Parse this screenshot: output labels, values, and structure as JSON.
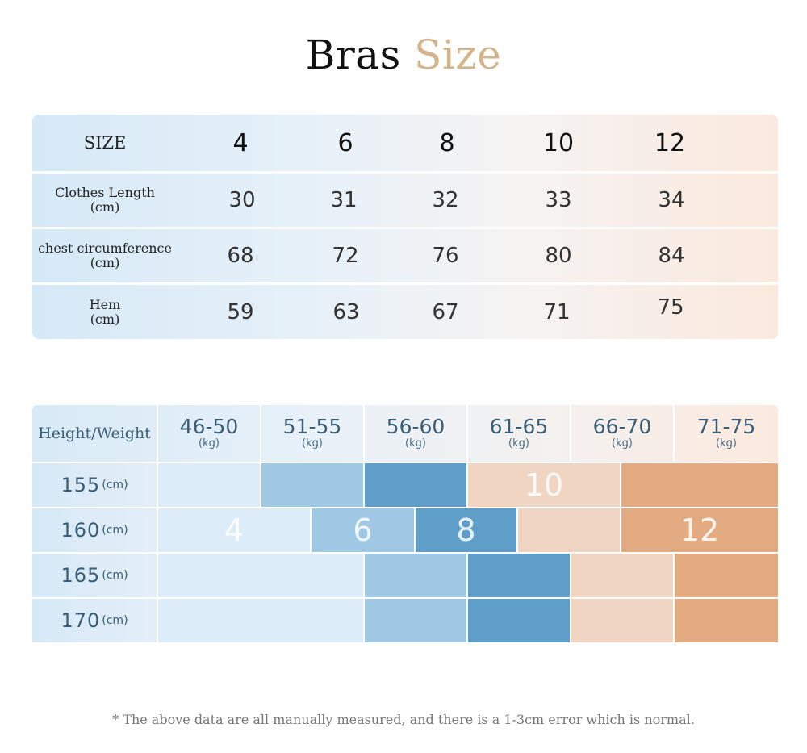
{
  "title": {
    "part1": "Bras",
    "part2": "Size"
  },
  "size_table": {
    "header_label": "SIZE",
    "sizes": [
      "4",
      "6",
      "8",
      "10",
      "12"
    ],
    "rows": [
      {
        "label_line1": "Clothes Length",
        "label_line2": "(cm)",
        "values": [
          "30",
          "31",
          "32",
          "33",
          "34"
        ]
      },
      {
        "label_line1": "chest circumference",
        "label_line2": "(cm)",
        "values": [
          "68",
          "72",
          "76",
          "80",
          "84"
        ]
      },
      {
        "label_line1": "Hem",
        "label_line2": "(cm)",
        "values": [
          "59",
          "63",
          "67",
          "71",
          "75"
        ]
      }
    ]
  },
  "grid_chart": {
    "corner_label": "Height/Weight",
    "weight_unit": "(kg)",
    "height_unit": "(cm)",
    "weights": [
      "46-50",
      "51-55",
      "56-60",
      "61-65",
      "66-70",
      "71-75"
    ],
    "heights": [
      "155",
      "160",
      "165",
      "170"
    ],
    "size_labels": {
      "s4": "4",
      "s6": "6",
      "s8": "8",
      "s10": "10",
      "s12": "12"
    },
    "colors": {
      "s4": "#dcecf8",
      "s6": "#9fc8e4",
      "s8": "#5e9ec8",
      "s10": "#f0d6c2",
      "s12": "#e2ab82"
    }
  },
  "note": "*  The above data are all manually measured, and there is a 1-3cm error which is normal."
}
